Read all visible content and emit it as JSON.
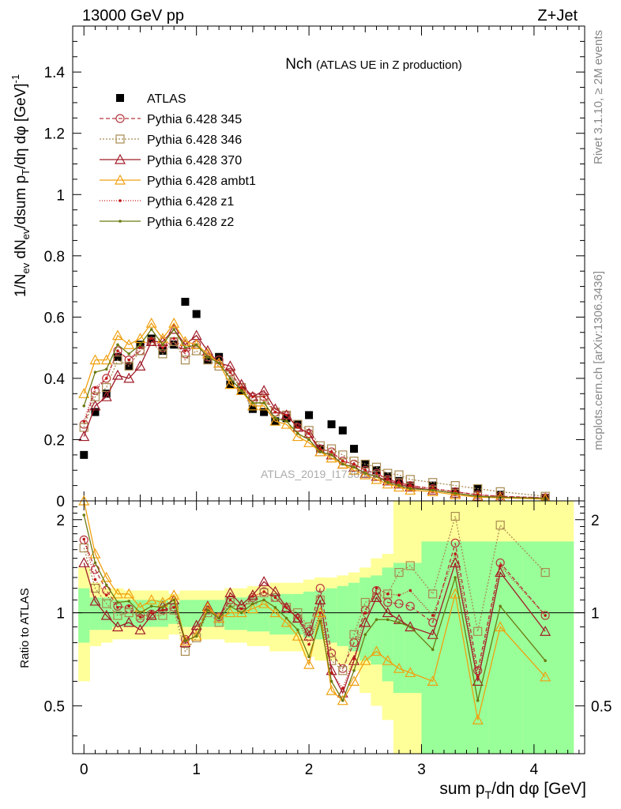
{
  "header": {
    "left": "13000 GeV pp",
    "right": "Z+Jet"
  },
  "side": {
    "rivet": "Rivet 3.1.10, ≥ 2M events",
    "mcplots": "mcplots.cern.ch [arXiv:1306.3436]"
  },
  "watermark": "ATLAS_2019_I1736531",
  "chart_data": [
    {
      "type": "scatter",
      "title_main": "Nch",
      "title_sub": "(ATLAS UE in Z production)",
      "ylabel": "1/N_ev dN_ev/dsum p_T/dη dφ [GeV]^-1",
      "xlim": [
        -0.1,
        4.45
      ],
      "ylim": [
        0,
        1.55
      ],
      "yticks": [
        "0",
        "0.2",
        "0.4",
        "0.6",
        "0.8",
        "1",
        "1.2",
        "1.4"
      ],
      "x": [
        0.0,
        0.1,
        0.2,
        0.3,
        0.4,
        0.5,
        0.6,
        0.7,
        0.8,
        0.9,
        1.0,
        1.1,
        1.2,
        1.3,
        1.4,
        1.5,
        1.6,
        1.7,
        1.8,
        1.9,
        2.0,
        2.1,
        2.2,
        2.3,
        2.4,
        2.5,
        2.6,
        2.7,
        2.8,
        2.9,
        3.1,
        3.3,
        3.5,
        3.7,
        4.1
      ],
      "series": [
        {
          "name": "ATLAS",
          "color": "#000000",
          "marker": "square-filled",
          "values": [
            0.15,
            0.29,
            0.35,
            0.47,
            0.44,
            0.51,
            0.53,
            0.49,
            0.51,
            0.65,
            0.61,
            0.46,
            0.47,
            0.38,
            0.36,
            0.3,
            0.29,
            0.26,
            0.27,
            0.25,
            0.28,
            0.17,
            0.25,
            0.23,
            0.17,
            0.12,
            0.1,
            0.08,
            0.065,
            0.05,
            0.05,
            0.03,
            0.04,
            0.02,
            0.01
          ]
        },
        {
          "name": "Pythia 6.428 345",
          "color": "#b5383e",
          "marker": "circle-open",
          "dash": "5,3",
          "values": [
            0.25,
            0.36,
            0.4,
            0.49,
            0.46,
            0.49,
            0.52,
            0.5,
            0.52,
            0.48,
            0.51,
            0.47,
            0.46,
            0.42,
            0.37,
            0.34,
            0.34,
            0.29,
            0.28,
            0.24,
            0.22,
            0.17,
            0.16,
            0.13,
            0.12,
            0.1,
            0.09,
            0.07,
            0.06,
            0.05,
            0.04,
            0.03,
            0.02,
            0.015,
            0.01
          ]
        },
        {
          "name": "Pythia 6.428 346",
          "color": "#a88a50",
          "marker": "square-open",
          "dash": "2,2",
          "values": [
            0.24,
            0.34,
            0.37,
            0.46,
            0.44,
            0.49,
            0.52,
            0.48,
            0.52,
            0.46,
            0.49,
            0.46,
            0.44,
            0.41,
            0.37,
            0.33,
            0.33,
            0.29,
            0.28,
            0.25,
            0.23,
            0.18,
            0.17,
            0.15,
            0.13,
            0.12,
            0.11,
            0.09,
            0.085,
            0.07,
            0.06,
            0.05,
            0.04,
            0.03,
            0.015
          ]
        },
        {
          "name": "Pythia 6.428 370",
          "color": "#a01c28",
          "marker": "triangle-open",
          "dash": "",
          "values": [
            0.21,
            0.31,
            0.34,
            0.41,
            0.4,
            0.44,
            0.52,
            0.52,
            0.56,
            0.51,
            0.54,
            0.49,
            0.45,
            0.44,
            0.38,
            0.34,
            0.36,
            0.3,
            0.28,
            0.24,
            0.22,
            0.16,
            0.15,
            0.12,
            0.11,
            0.09,
            0.08,
            0.065,
            0.055,
            0.045,
            0.035,
            0.025,
            0.015,
            0.012,
            0.008
          ]
        },
        {
          "name": "Pythia 6.428 ambt1",
          "color": "#f0a010",
          "marker": "triangle-open",
          "dash": "",
          "values": [
            0.35,
            0.46,
            0.46,
            0.54,
            0.51,
            0.53,
            0.58,
            0.53,
            0.58,
            0.52,
            0.51,
            0.48,
            0.45,
            0.38,
            0.36,
            0.31,
            0.31,
            0.26,
            0.25,
            0.21,
            0.19,
            0.16,
            0.14,
            0.12,
            0.1,
            0.085,
            0.07,
            0.055,
            0.045,
            0.035,
            0.03,
            0.02,
            0.012,
            0.01,
            0.006
          ]
        },
        {
          "name": "Pythia 6.428 z1",
          "color": "#c01818",
          "marker": "dot",
          "dash": "1,2",
          "values": [
            0.26,
            0.37,
            0.4,
            0.49,
            0.46,
            0.5,
            0.53,
            0.5,
            0.53,
            0.49,
            0.51,
            0.47,
            0.45,
            0.42,
            0.37,
            0.34,
            0.34,
            0.29,
            0.28,
            0.24,
            0.22,
            0.17,
            0.16,
            0.13,
            0.12,
            0.1,
            0.09,
            0.07,
            0.06,
            0.05,
            0.04,
            0.03,
            0.02,
            0.015,
            0.01
          ]
        },
        {
          "name": "Pythia 6.428 z2",
          "color": "#6b7a10",
          "marker": "dot",
          "dash": "",
          "values": [
            0.31,
            0.42,
            0.43,
            0.51,
            0.48,
            0.51,
            0.56,
            0.51,
            0.56,
            0.5,
            0.51,
            0.47,
            0.45,
            0.4,
            0.36,
            0.32,
            0.32,
            0.27,
            0.26,
            0.22,
            0.2,
            0.16,
            0.15,
            0.12,
            0.11,
            0.09,
            0.08,
            0.06,
            0.05,
            0.04,
            0.035,
            0.025,
            0.015,
            0.012,
            0.008
          ]
        }
      ]
    },
    {
      "type": "line",
      "ylabel": "Ratio to ATLAS",
      "xlabel": "sum p_T/dη dφ [GeV]",
      "xlim": [
        -0.1,
        4.45
      ],
      "ylim": [
        0.35,
        2.3
      ],
      "xticks": [
        "0",
        "1",
        "2",
        "3",
        "4"
      ],
      "yticks": [
        "0.5",
        "1",
        "2"
      ],
      "reference": 1,
      "bands": {
        "yellow_low": [
          0.6,
          0.78,
          0.8,
          0.82,
          0.82,
          0.82,
          0.82,
          0.82,
          0.85,
          0.82,
          0.82,
          0.82,
          0.82,
          0.8,
          0.8,
          0.78,
          0.78,
          0.75,
          0.75,
          0.75,
          0.72,
          0.7,
          0.7,
          0.68,
          0.65,
          0.55,
          0.5,
          0.45,
          0.2,
          0.2,
          0.2,
          0.2,
          0.2,
          0.2,
          0.2
        ],
        "yellow_high": [
          1.4,
          1.25,
          1.2,
          1.2,
          1.18,
          1.18,
          1.18,
          1.18,
          1.15,
          1.18,
          1.18,
          1.18,
          1.18,
          1.2,
          1.2,
          1.22,
          1.22,
          1.25,
          1.25,
          1.25,
          1.28,
          1.3,
          1.3,
          1.32,
          1.35,
          1.4,
          1.5,
          1.55,
          2.3,
          2.3,
          2.3,
          2.3,
          2.3,
          2.3,
          2.3
        ],
        "green_low": [
          0.8,
          0.88,
          0.88,
          0.9,
          0.9,
          0.9,
          0.9,
          0.9,
          0.92,
          0.9,
          0.9,
          0.9,
          0.9,
          0.88,
          0.88,
          0.87,
          0.87,
          0.85,
          0.85,
          0.85,
          0.83,
          0.82,
          0.8,
          0.78,
          0.75,
          0.7,
          0.68,
          0.6,
          0.55,
          0.55,
          0.3,
          0.3,
          0.3,
          0.3,
          0.3
        ],
        "green_high": [
          1.2,
          1.12,
          1.12,
          1.1,
          1.1,
          1.1,
          1.1,
          1.1,
          1.08,
          1.1,
          1.1,
          1.1,
          1.1,
          1.12,
          1.12,
          1.13,
          1.13,
          1.15,
          1.15,
          1.15,
          1.17,
          1.18,
          1.2,
          1.22,
          1.25,
          1.3,
          1.32,
          1.4,
          1.45,
          1.45,
          1.7,
          1.7,
          1.7,
          1.7,
          1.7
        ]
      },
      "series": [
        {
          "name": "Pythia 6.428 345",
          "color": "#b5383e",
          "values": [
            1.72,
            1.38,
            1.18,
            1.05,
            1.03,
            0.96,
            0.99,
            1.02,
            1.04,
            0.82,
            0.88,
            1.02,
            0.97,
            1.1,
            1.03,
            1.12,
            1.17,
            1.12,
            1.03,
            0.96,
            0.87,
            1.2,
            0.74,
            0.66,
            0.8,
            1.02,
            1.18,
            1.08,
            1.07,
            1.05,
            0.93,
            1.68,
            0.65,
            1.45,
            0.98
          ]
        },
        {
          "name": "Pythia 6.428 346",
          "color": "#a88a50",
          "values": [
            1.62,
            1.2,
            1.07,
            0.98,
            1.0,
            0.98,
            0.98,
            0.98,
            1.02,
            0.75,
            0.83,
            1.0,
            0.93,
            1.08,
            1.03,
            1.1,
            1.16,
            1.12,
            1.04,
            1.0,
            0.9,
            1.1,
            0.7,
            0.65,
            0.85,
            1.08,
            1.12,
            1.15,
            1.35,
            1.42,
            1.15,
            2.05,
            0.87,
            1.92,
            1.35
          ]
        },
        {
          "name": "Pythia 6.428 370",
          "color": "#a01c28",
          "values": [
            1.45,
            1.09,
            0.98,
            0.9,
            0.93,
            0.88,
            0.98,
            1.05,
            1.1,
            0.8,
            0.91,
            1.05,
            0.96,
            1.16,
            1.06,
            1.14,
            1.26,
            1.17,
            1.04,
            0.96,
            0.84,
            1.1,
            0.65,
            0.55,
            0.7,
            0.93,
            1.12,
            1.0,
            0.95,
            0.9,
            0.85,
            1.45,
            0.6,
            1.35,
            0.87
          ]
        },
        {
          "name": "Pythia 6.428 ambt1",
          "color": "#f0a010",
          "values": [
            2.3,
            1.55,
            1.3,
            1.15,
            1.15,
            1.04,
            1.1,
            1.08,
            1.14,
            0.81,
            0.84,
            1.04,
            0.96,
            1.0,
            1.0,
            1.03,
            1.07,
            1.0,
            0.93,
            0.84,
            0.68,
            1.0,
            0.56,
            0.52,
            0.6,
            0.7,
            0.75,
            0.7,
            0.66,
            0.64,
            0.6,
            1.15,
            0.45,
            0.9,
            0.62
          ]
        },
        {
          "name": "Pythia 6.428 z1",
          "color": "#c01818",
          "values": [
            1.73,
            1.28,
            1.14,
            1.04,
            1.05,
            0.97,
            1.0,
            1.02,
            1.04,
            0.81,
            0.84,
            1.02,
            0.96,
            1.1,
            1.03,
            1.13,
            1.17,
            1.12,
            1.04,
            0.96,
            0.79,
            1.0,
            0.64,
            0.57,
            0.71,
            1.0,
            1.2,
            1.15,
            1.14,
            1.18,
            0.98,
            1.55,
            0.62,
            1.42,
            0.98
          ]
        },
        {
          "name": "Pythia 6.428 z2",
          "color": "#6b7a10",
          "values": [
            2.07,
            1.45,
            1.23,
            1.08,
            1.09,
            1.0,
            1.05,
            1.04,
            1.1,
            0.81,
            0.84,
            1.02,
            0.96,
            1.05,
            1.0,
            1.07,
            1.1,
            1.04,
            0.96,
            0.88,
            0.72,
            0.94,
            0.6,
            0.52,
            0.65,
            0.85,
            0.95,
            0.95,
            0.93,
            0.9,
            0.76,
            1.3,
            0.52,
            1.05,
            0.7
          ]
        }
      ]
    }
  ]
}
